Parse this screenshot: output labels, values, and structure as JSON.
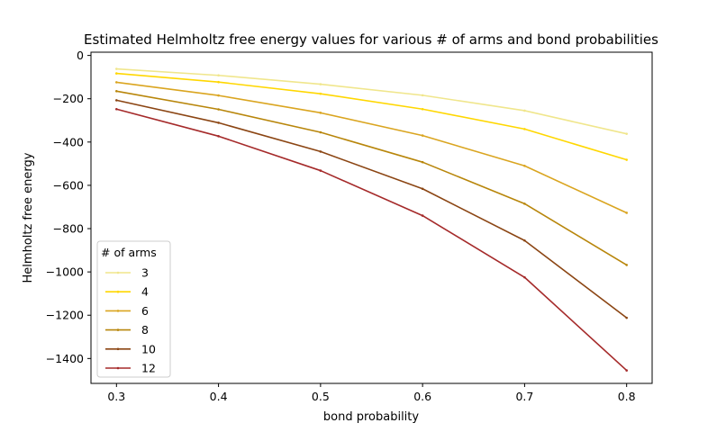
{
  "chart_data": {
    "type": "line",
    "title": "Estimated Helmholtz free energy values for various # of arms and bond probabilities",
    "xlabel": "bond probability",
    "ylabel": "Helmholtz free energy",
    "x": [
      0.3,
      0.4,
      0.5,
      0.6,
      0.7,
      0.8
    ],
    "xticks": [
      "0.3",
      "0.4",
      "0.5",
      "0.6",
      "0.7",
      "0.8"
    ],
    "yticks": [
      "0",
      "−200",
      "−400",
      "−600",
      "−800",
      "−1000",
      "−1200",
      "−1400"
    ],
    "ytick_values": [
      0,
      -200,
      -400,
      -600,
      -800,
      -1000,
      -1200,
      -1400
    ],
    "xlim": [
      0.275,
      0.825
    ],
    "ylim": [
      -1515,
      15
    ],
    "grid": false,
    "legend": {
      "title": "# of arms",
      "placement": "lower-left"
    },
    "series": [
      {
        "name": "3",
        "color": "#f0e68c",
        "values": [
          -62,
          -92,
          -133,
          -184,
          -255,
          -362
        ]
      },
      {
        "name": "4",
        "color": "#ffd700",
        "values": [
          -83,
          -123,
          -177,
          -248,
          -340,
          -482
        ]
      },
      {
        "name": "6",
        "color": "#daa520",
        "values": [
          -124,
          -185,
          -265,
          -370,
          -510,
          -727
        ]
      },
      {
        "name": "8",
        "color": "#b8860b",
        "values": [
          -165,
          -249,
          -355,
          -493,
          -685,
          -968
        ]
      },
      {
        "name": "10",
        "color": "#8b4513",
        "values": [
          -207,
          -311,
          -444,
          -616,
          -855,
          -1212
        ]
      },
      {
        "name": "12",
        "color": "#a52a2a",
        "values": [
          -248,
          -373,
          -532,
          -740,
          -1025,
          -1455
        ]
      }
    ]
  }
}
